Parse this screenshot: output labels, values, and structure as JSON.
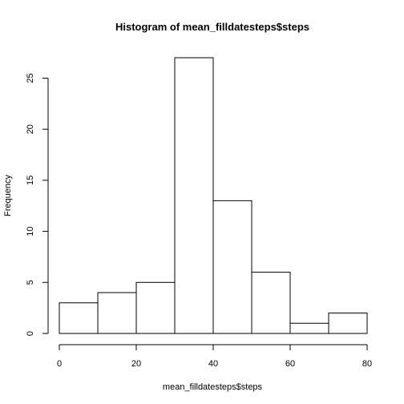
{
  "chart_data": {
    "type": "bar",
    "title": "Histogram of mean_filldatesteps$steps",
    "xlabel": "mean_filldatesteps$steps",
    "ylabel": "Frequency",
    "bins": [
      {
        "start": 0,
        "end": 10,
        "count": 3
      },
      {
        "start": 10,
        "end": 20,
        "count": 4
      },
      {
        "start": 20,
        "end": 30,
        "count": 5
      },
      {
        "start": 30,
        "end": 40,
        "count": 27
      },
      {
        "start": 40,
        "end": 50,
        "count": 13
      },
      {
        "start": 50,
        "end": 60,
        "count": 6
      },
      {
        "start": 60,
        "end": 70,
        "count": 1
      },
      {
        "start": 70,
        "end": 80,
        "count": 2
      }
    ],
    "xlim": [
      0,
      80
    ],
    "ylim": [
      0,
      27
    ],
    "xticks": [
      0,
      20,
      40,
      60,
      80
    ],
    "yticks": [
      0,
      5,
      10,
      15,
      20,
      25
    ],
    "grid": false,
    "legend": "none",
    "colors": {
      "bar_fill": "#ffffff",
      "bar_stroke": "#000000"
    }
  }
}
